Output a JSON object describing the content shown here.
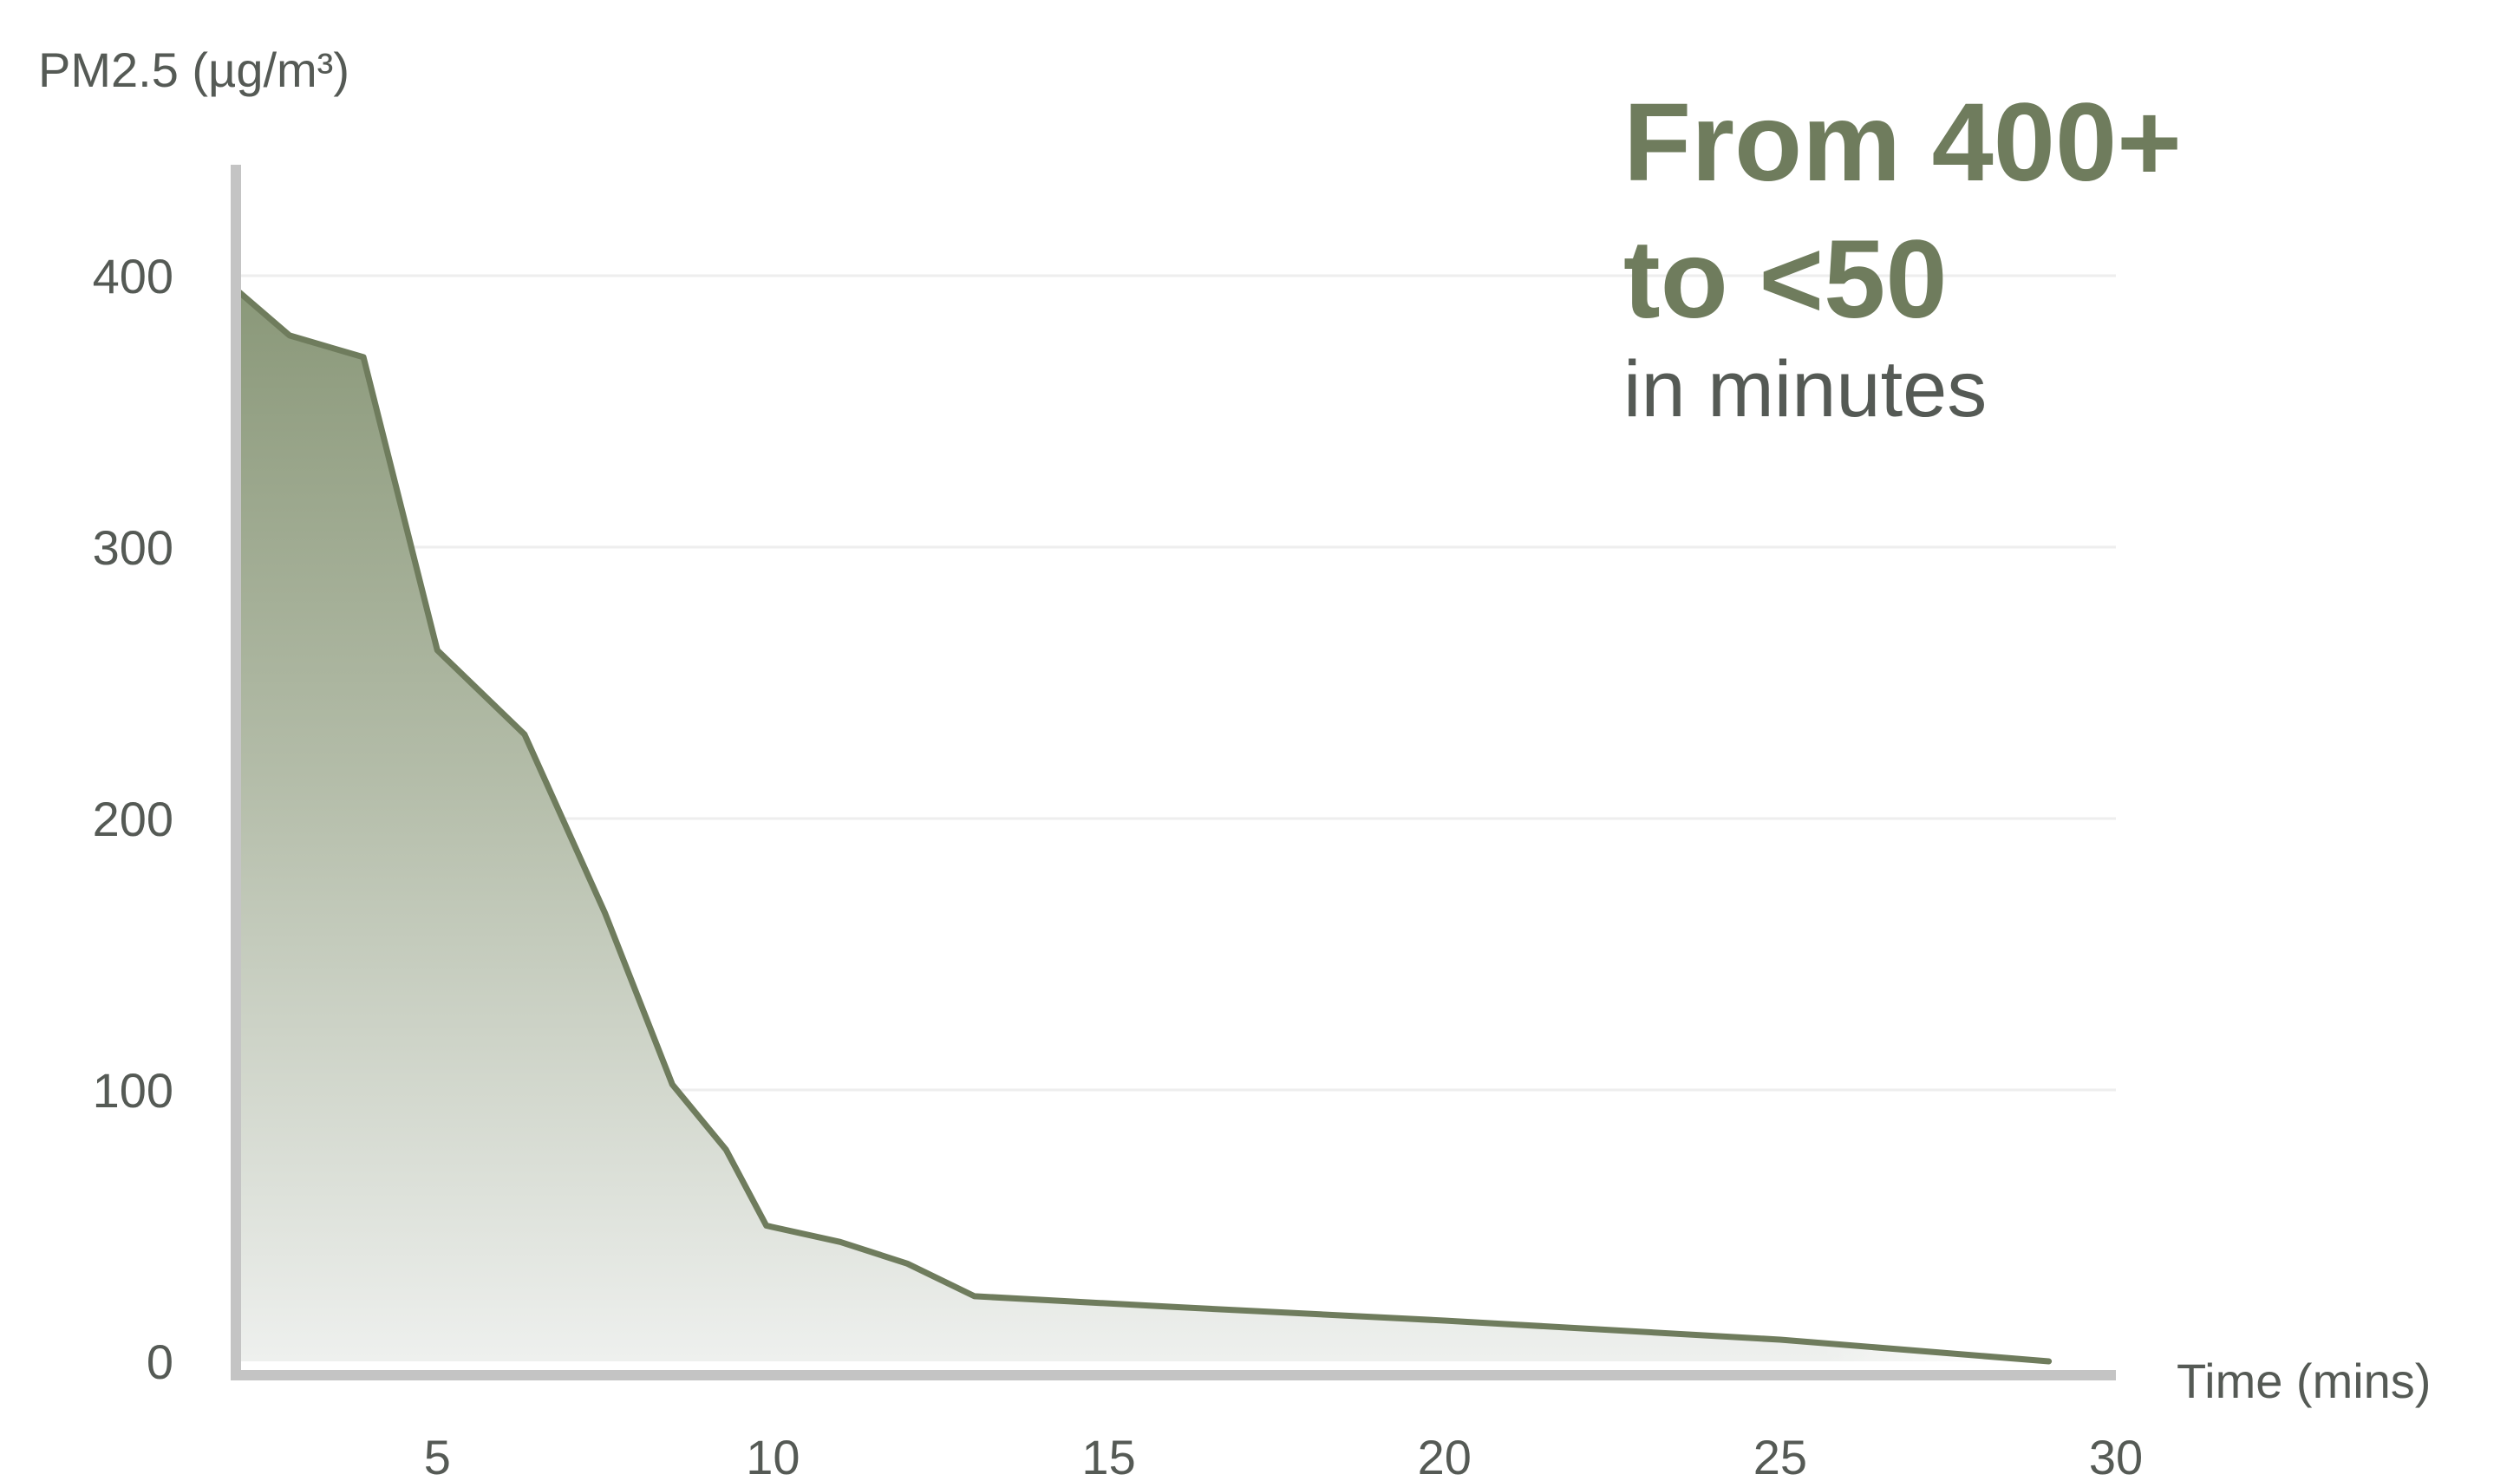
{
  "headline": {
    "line1": "From 400+",
    "line2": "to <50",
    "subtitle": "in minutes"
  },
  "colors": {
    "accent": "#6f7c5d",
    "fill_top": "#8a9879",
    "fill_bottom": "#eef0ee",
    "gridline": "#eeeeee",
    "axis": "#c4c4c4",
    "text": "#555a55"
  },
  "chart_data": {
    "type": "area",
    "ylabel": "PM2.5 (µg/m³)",
    "xlabel": "Time (mins)",
    "xlim": [
      2,
      30
    ],
    "ylim": [
      0,
      400
    ],
    "y_ticks": [
      "0",
      "100",
      "200",
      "300",
      "400"
    ],
    "x_ticks": [
      "5",
      "10",
      "15",
      "20",
      "25",
      "30"
    ],
    "grid": "horizontal",
    "series": [
      {
        "x": [
          2,
          2.8,
          3.9,
          5,
          6.3,
          7.5,
          8.5,
          9.3,
          9.9,
          11,
          12,
          13,
          16,
          20,
          25,
          29
        ],
        "y": [
          395,
          378,
          370,
          262,
          231,
          165,
          102,
          78,
          50,
          44,
          36,
          24,
          20,
          15,
          8,
          0
        ]
      }
    ]
  }
}
